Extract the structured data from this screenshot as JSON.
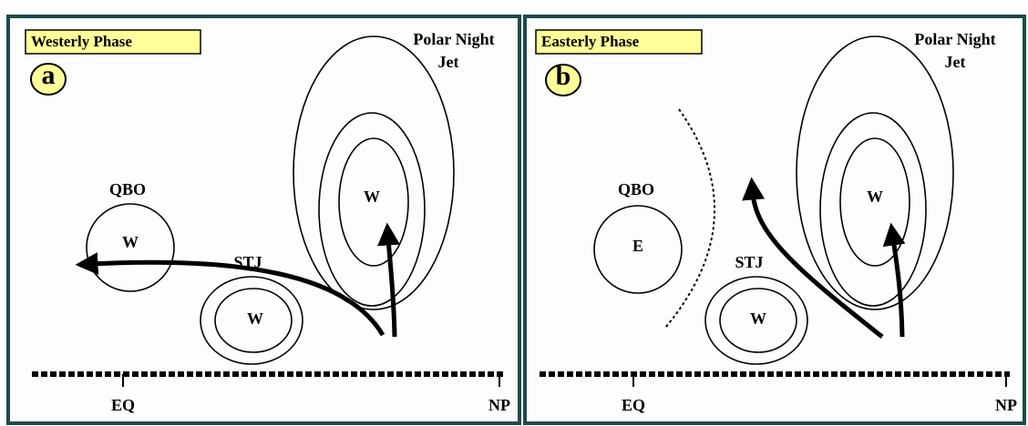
{
  "panels": [
    {
      "phase": "Westerly Phase",
      "letter": "a",
      "jet_label": [
        "Polar Night",
        "Jet"
      ],
      "jet_center": "W",
      "qbo_label": "QBO",
      "qbo_center": "W",
      "stj_label": "STJ",
      "stj_center": "W",
      "eq_label": "EQ",
      "np_label": "NP"
    },
    {
      "phase": "Easterly Phase",
      "letter": "b",
      "jet_label": [
        "Polar Night",
        "Jet"
      ],
      "jet_center": "W",
      "qbo_label": "QBO",
      "qbo_center": "E",
      "stj_label": "STJ",
      "stj_center": "W",
      "eq_label": "EQ",
      "np_label": "NP"
    }
  ]
}
